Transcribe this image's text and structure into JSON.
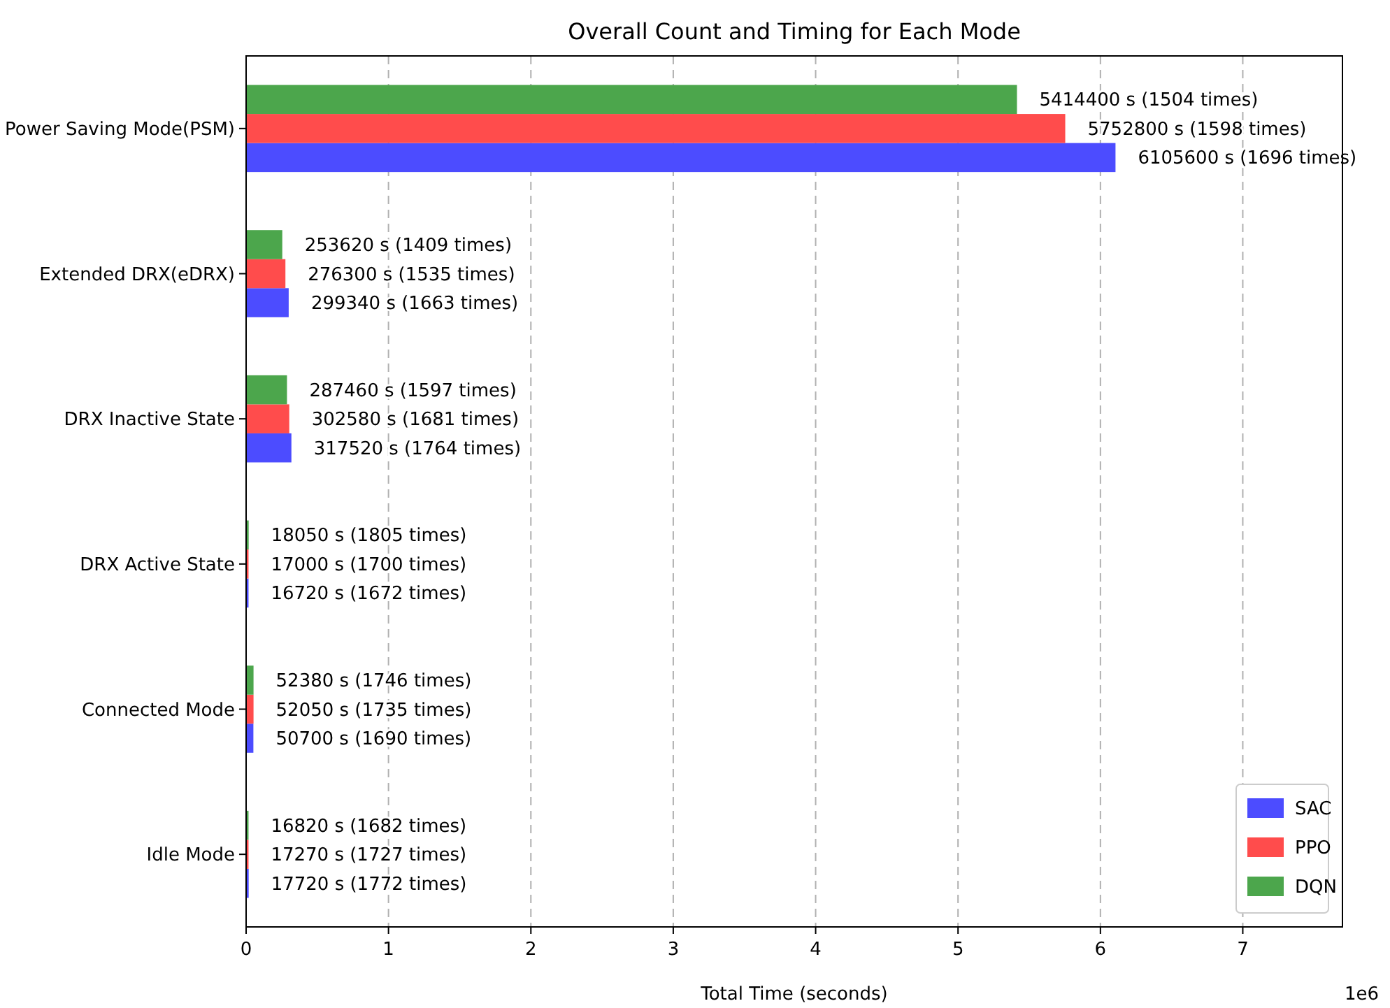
{
  "chart_data": {
    "type": "bar",
    "orientation": "horizontal",
    "title": "Overall Count and Timing for Each Mode",
    "xlabel": "Total Time (seconds)",
    "categories": [
      "Power Saving Mode(PSM)",
      "Extended DRX(eDRX)",
      "DRX Inactive State",
      "DRX Active State",
      "Connected Mode",
      "Idle Mode"
    ],
    "series": [
      {
        "name": "SAC",
        "color": "#4c4cff",
        "values": [
          6.106,
          0.299,
          0.318,
          0.017,
          0.051,
          0.018
        ]
      },
      {
        "name": "PPO",
        "color": "#ff4c4c",
        "values": [
          5.753,
          0.276,
          0.303,
          0.017,
          0.052,
          0.017
        ]
      },
      {
        "name": "DQN",
        "color": "#4ca64c",
        "values": [
          5.414,
          0.254,
          0.287,
          0.018,
          0.052,
          0.017
        ]
      }
    ],
    "xlim": [
      0,
      7.7
    ],
    "xticks": [
      0,
      1,
      2,
      3,
      4,
      5,
      6,
      7
    ],
    "annotations": [
      "6105600 s (1696 times)",
      "299340 s (1663 times)",
      "317520 s (1764 times)",
      "16720 s (1672 times)",
      "50700 s (1690 times)",
      "17720 s (1772 times)",
      "5752800 s (1598 times)",
      "276300 s (1535 times)",
      "302580 s (1681 times)",
      "17000 s (1700 times)",
      "52050 s (1735 times)",
      "17270 s (1727 times)",
      "5414400 s (1504 times)",
      "253620 s (1409 times)",
      "287460 s (1597 times)",
      "18050 s (1805 times)",
      "52380 s (1746 times)",
      "16820 s (1682 times)",
      "1e6"
    ],
    "grid": "x",
    "line_style": "dashed",
    "legend": "bottom right"
  }
}
